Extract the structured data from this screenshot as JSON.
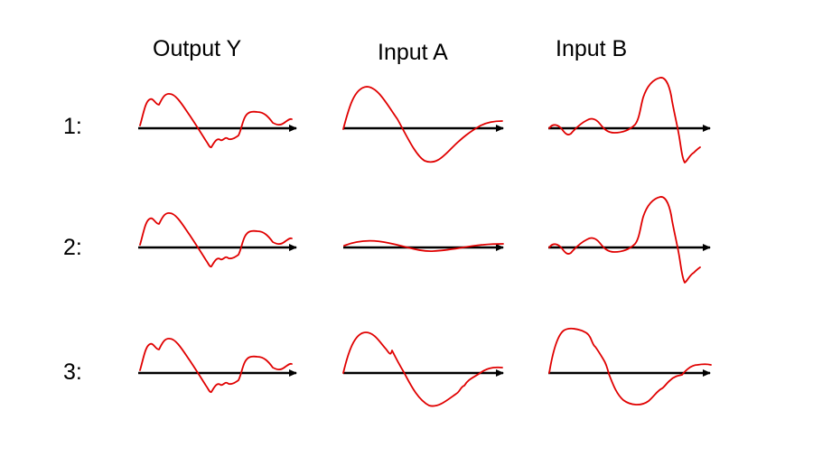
{
  "headers": {
    "output_y": "Output Y",
    "input_a": "Input A",
    "input_b": "Input B"
  },
  "rows": [
    "1:",
    "2:",
    "3:"
  ],
  "colors": {
    "signal": "#e00000",
    "axis": "#000000",
    "background": "#ffffff"
  }
}
